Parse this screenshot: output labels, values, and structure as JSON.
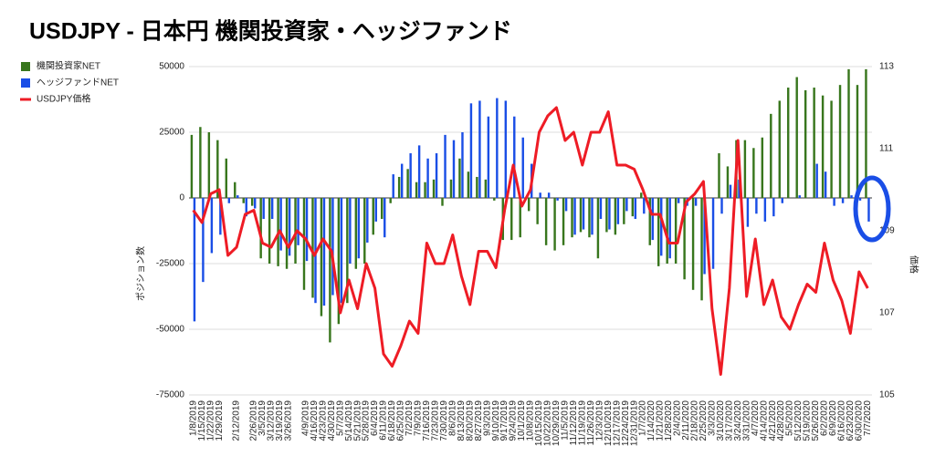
{
  "chart_data": {
    "type": "bar-line",
    "title": "USDJPY - 日本円 機関投資家・ヘッジファンド",
    "y_label": "ポジション数",
    "y2_label": "価格",
    "categories": [
      "1/8/2019",
      "1/15/2019",
      "1/22/2019",
      "1/29/2019",
      null,
      "2/12/2019",
      null,
      "2/26/2019",
      "3/5/2019",
      "3/12/2019",
      "3/19/2019",
      "3/26/2019",
      null,
      "4/9/2019",
      "4/16/2019",
      "4/23/2019",
      "4/30/2019",
      "5/7/2019",
      "5/14/2019",
      "5/21/2019",
      "5/28/2019",
      "6/4/2019",
      "6/11/2019",
      "6/18/2019",
      "6/25/2019",
      "7/2/2019",
      "7/9/2019",
      "7/16/2019",
      "7/23/2019",
      "7/30/2019",
      "8/6/2019",
      "8/13/2019",
      "8/20/2019",
      "8/27/2019",
      "9/3/2019",
      "9/10/2019",
      "9/17/2019",
      "9/24/2019",
      "10/1/2019",
      "10/8/2019",
      "10/15/2019",
      "10/22/2019",
      "10/29/2019",
      "11/5/2019",
      "11/12/2019",
      "11/19/2019",
      "11/26/2019",
      "12/3/2019",
      "12/10/2019",
      "12/17/2019",
      "12/24/2019",
      "12/31/2019",
      "1/7/2020",
      "1/14/2020",
      "1/21/2020",
      "1/28/2020",
      "2/4/2020",
      "2/11/2020",
      "2/18/2020",
      "2/25/2020",
      "3/3/2020",
      "3/10/2020",
      "3/17/2020",
      "3/24/2020",
      "3/31/2020",
      "4/7/2020",
      "4/14/2020",
      "4/21/2020",
      "4/28/2020",
      "5/5/2020",
      "5/12/2020",
      "5/19/2020",
      "5/26/2020",
      "6/2/2020",
      "6/9/2020",
      "6/16/2020",
      "6/23/2020",
      "6/30/2020",
      "7/7/2020"
    ],
    "series": [
      {
        "name": "機関投資家NET",
        "color": "#38761d",
        "kind": "bar",
        "values": [
          24000,
          27000,
          25000,
          22000,
          15000,
          6000,
          -2000,
          -3000,
          -23000,
          -25000,
          -26000,
          -27000,
          -25000,
          -35000,
          -38000,
          -45000,
          -55000,
          -48000,
          -40000,
          -27000,
          -25000,
          -14000,
          -8000,
          -2000,
          8000,
          11000,
          6000,
          6000,
          7000,
          -3000,
          7000,
          15000,
          10000,
          8000,
          7000,
          -1000,
          -16000,
          -16000,
          -15000,
          -5000,
          -10000,
          -18000,
          -20000,
          -18000,
          -15000,
          -13000,
          -15000,
          -23000,
          -13000,
          -14000,
          -10000,
          -7000,
          2000,
          -18000,
          -26000,
          -25000,
          -25000,
          -31000,
          -35000,
          -39000,
          0,
          17000,
          12000,
          22000,
          22000,
          19000,
          23000,
          32000,
          37000,
          42000,
          46000,
          41000,
          42000,
          39000,
          37000,
          43000,
          49000,
          43000,
          49000
        ]
      },
      {
        "name": "ヘッジファンドNET",
        "color": "#1a4ee6",
        "kind": "bar",
        "values": [
          -47000,
          -32000,
          -21000,
          -14000,
          -2000,
          1000,
          -7000,
          -4000,
          -8000,
          -8000,
          -20000,
          -22000,
          -18000,
          -24000,
          -40000,
          -41000,
          -37000,
          -40000,
          -25000,
          -23000,
          -17000,
          -9000,
          -15000,
          9000,
          13000,
          17000,
          20000,
          15000,
          17000,
          24000,
          22000,
          25000,
          36000,
          37000,
          31000,
          38000,
          37000,
          31000,
          23000,
          13000,
          2000,
          2000,
          -1000,
          -5000,
          -14000,
          -12000,
          -14000,
          -8000,
          -12000,
          -10000,
          -5000,
          -8000,
          -6000,
          -16000,
          -22000,
          -23000,
          -2000,
          -3000,
          -3000,
          -29000,
          -27000,
          -6000,
          5000,
          7000,
          -11000,
          -6000,
          -9000,
          -7000,
          -2000,
          0,
          1000,
          0,
          13000,
          10000,
          -3000,
          -2000,
          1000,
          -1000,
          -9000
        ]
      },
      {
        "name": "USDJPY価格",
        "color": "#ee1c25",
        "kind": "line",
        "axis": "y2",
        "values": [
          109.5,
          109.2,
          109.9,
          110.0,
          108.4,
          108.6,
          109.4,
          109.5,
          108.7,
          108.6,
          109.0,
          108.6,
          109.0,
          108.8,
          108.4,
          108.8,
          108.5,
          107.0,
          107.8,
          107.1,
          108.2,
          107.6,
          106.0,
          105.7,
          106.2,
          106.8,
          106.5,
          108.7,
          108.2,
          108.2,
          108.9,
          107.9,
          107.2,
          108.5,
          108.5,
          108.1,
          109.5,
          110.6,
          109.6,
          110.0,
          111.4,
          111.8,
          112.0,
          111.2,
          111.4,
          110.6,
          111.4,
          111.4,
          111.9,
          110.6,
          110.6,
          110.5,
          110.0,
          109.4,
          109.4,
          108.7,
          108.7,
          109.7,
          109.9,
          110.2,
          107.1,
          105.5,
          107.6,
          111.2,
          107.4,
          108.8,
          107.2,
          107.8,
          106.9,
          106.6,
          107.2,
          107.7,
          107.5,
          108.7,
          107.8,
          107.3,
          106.5,
          108.0,
          107.6
        ]
      }
    ],
    "ylim": [
      -75000,
      50000
    ],
    "yticks": [
      -75000,
      -50000,
      -25000,
      0,
      25000,
      50000
    ],
    "y2lim": [
      105,
      113
    ],
    "y2ticks": [
      105,
      107,
      109,
      111,
      113
    ],
    "grid": true
  }
}
